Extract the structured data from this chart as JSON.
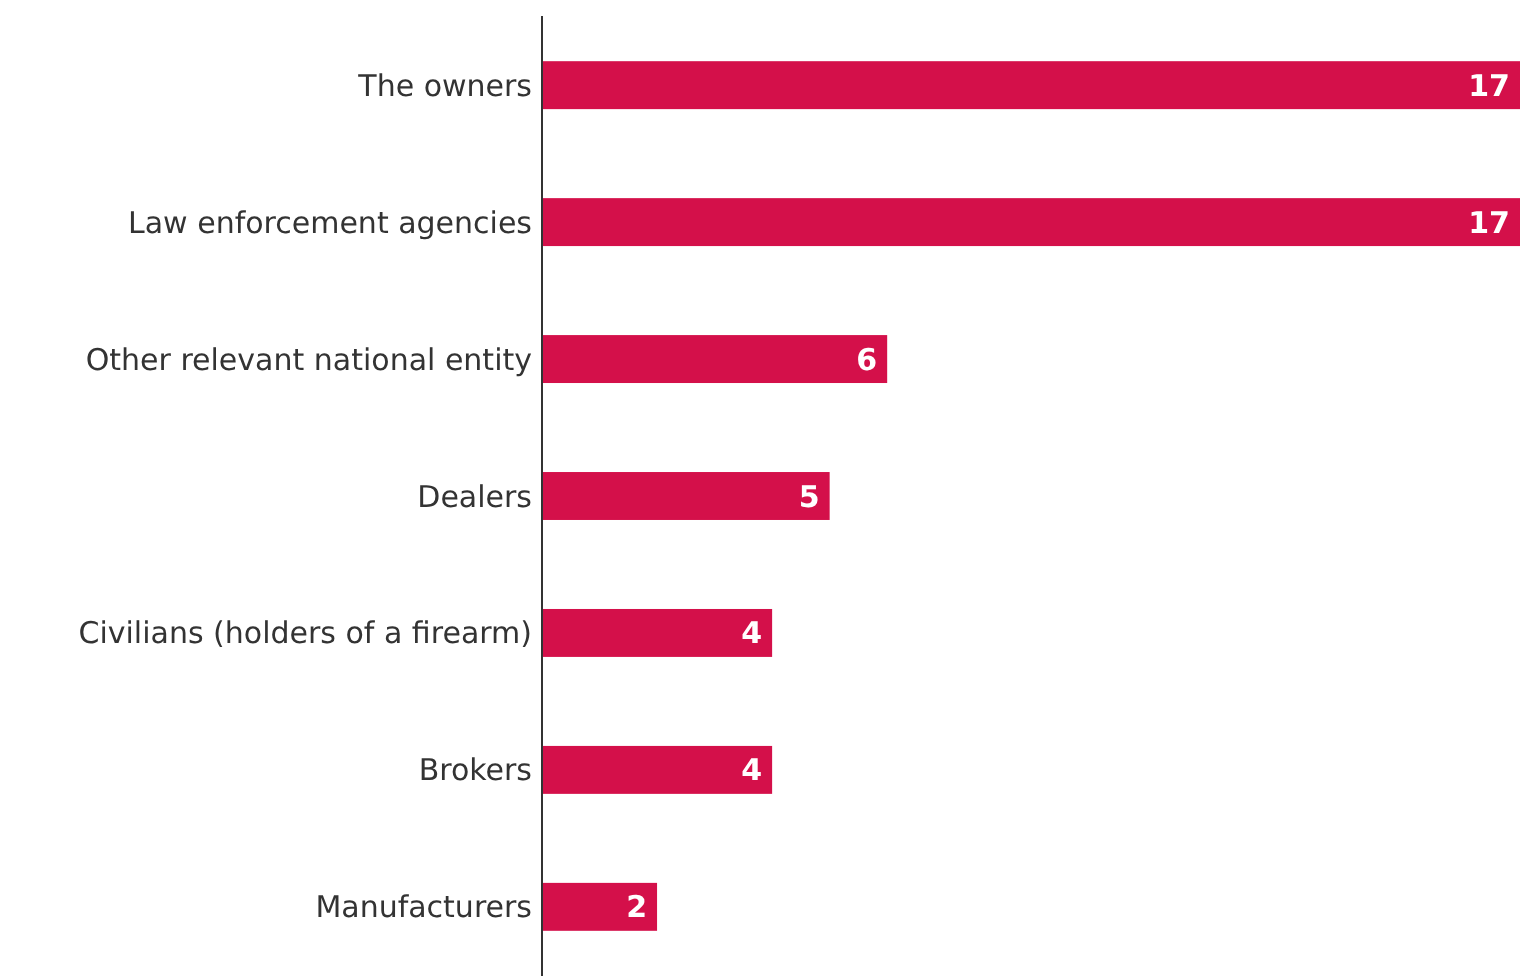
{
  "chart_data": {
    "type": "bar",
    "orientation": "horizontal",
    "categories": [
      "The owners",
      "Law enforcement agencies",
      "Other relevant national entity",
      "Dealers",
      "Civilians (holders of a firearm)",
      "Brokers",
      "Manufacturers"
    ],
    "values": [
      17,
      17,
      6,
      5,
      4,
      4,
      2
    ],
    "color": "#d4104a",
    "data_labels": true
  }
}
